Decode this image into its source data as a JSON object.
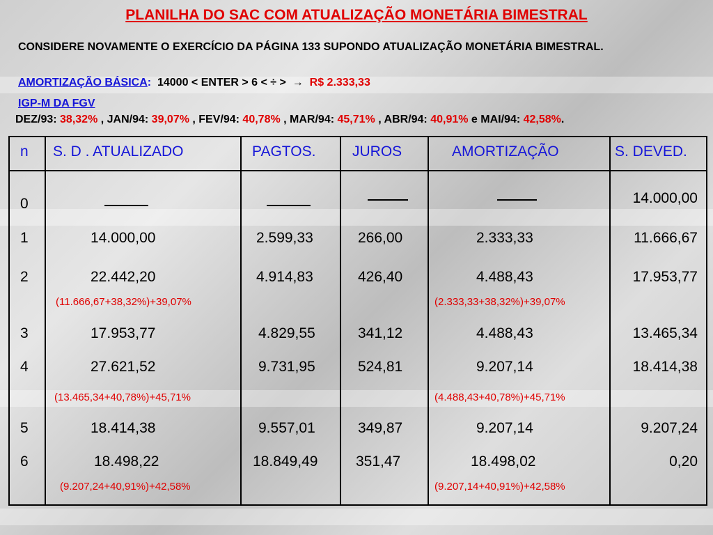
{
  "title": "PLANILHA DO SAC COM ATUALIZAÇÃO MONETÁRIA BIMESTRAL",
  "intro": "CONSIDERE NOVAMENTE O EXERCÍCIO DA PÁGINA 133 SUPONDO ATUALIZAÇÃO MONETÁRIA BIMESTRAL.",
  "amortizacao": {
    "label": "AMORTIZAÇÃO BÁSICA",
    "colon": ":",
    "keys": "14000 < ENTER > 6 < ÷ >",
    "arrow": "→",
    "result": "R$ 2.333,33"
  },
  "igpm": {
    "label": "IGP-M DA FGV",
    "items": [
      {
        "month": "DEZ/93:",
        "value": "38,32%",
        "sep": " , "
      },
      {
        "month": "JAN/94:",
        "value": "39,07%",
        "sep": " , "
      },
      {
        "month": "FEV/94:",
        "value": "40,78%",
        "sep": " , "
      },
      {
        "month": "MAR/94:",
        "value": "45,71%",
        "sep": " , "
      },
      {
        "month": "ABR/94:",
        "value": "40,91%",
        "sep": " e "
      },
      {
        "month": "MAI/94:",
        "value": "42,58%",
        "sep": "."
      }
    ]
  },
  "table": {
    "headers": [
      "n",
      "S. D . ATUALIZADO",
      "PAGTOS.",
      "JUROS",
      "AMORTIZAÇÃO",
      "S. DEVED."
    ],
    "rows": [
      {
        "n": "0",
        "sd": "",
        "pag": "",
        "juros": "",
        "amort": "",
        "saldo": "14.000,00"
      },
      {
        "n": "1",
        "sd": "14.000,00",
        "pag": "2.599,33",
        "juros": "266,00",
        "amort": "2.333,33",
        "saldo": "11.666,67"
      },
      {
        "n": "2",
        "sd": "22.442,20",
        "pag": "4.914,83",
        "juros": "426,40",
        "amort": "4.488,43",
        "saldo": "17.953,77"
      },
      {
        "n": "3",
        "sd": "17.953,77",
        "pag": "4.829,55",
        "juros": "341,12",
        "amort": "4.488,43",
        "saldo": "13.465,34"
      },
      {
        "n": "4",
        "sd": "27.621,52",
        "pag": "9.731,95",
        "juros": "524,81",
        "amort": "9.207,14",
        "saldo": "18.414,38"
      },
      {
        "n": "5",
        "sd": "18.414,38",
        "pag": "9.557,01",
        "juros": "349,87",
        "amort": "9.207,14",
        "saldo": "9.207,24"
      },
      {
        "n": "6",
        "sd": "18.498,22",
        "pag": "18.849,49",
        "juros": "351,47",
        "amort": "18.498,02",
        "saldo": "0,20"
      }
    ],
    "notes": [
      {
        "sd": "(11.666,67+38,32%)+39,07%",
        "amort": "(2.333,33+38,32%)+39,07%"
      },
      {
        "sd": "(13.465,34+40,78%)+45,71%",
        "amort": "(4.488,43+40,78%)+45,71%"
      },
      {
        "sd": "(9.207,24+40,91%)+42,58%",
        "amort": "(9.207,14+40,91%)+42,58%"
      }
    ]
  },
  "colors": {
    "title": "#e00000",
    "blue": "#1515d8",
    "red": "#e00000"
  }
}
